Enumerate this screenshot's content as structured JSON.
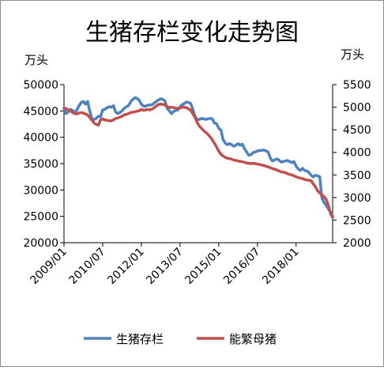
{
  "chart_data": {
    "type": "line",
    "title": "生猪存栏变化走势图",
    "ylabel_left": "万头",
    "ylabel_right": "万头",
    "ylim_left": [
      20000,
      50000
    ],
    "ylim_right": [
      2000,
      5500
    ],
    "yticks_left": [
      20000,
      25000,
      30000,
      35000,
      40000,
      45000,
      50000
    ],
    "yticks_right": [
      2000,
      2500,
      3000,
      3500,
      4000,
      4500,
      5000,
      5500
    ],
    "x_tick_labels": [
      "2009/01",
      "2010/07",
      "2012/01",
      "2013/07",
      "2015/01",
      "2016/07",
      "2018/01"
    ],
    "x_range": [
      "2009/01",
      "2019/06"
    ],
    "grid": false,
    "legend_position": "bottom",
    "series": [
      {
        "name": "生猪存栏",
        "axis": "left",
        "color": "#4f81bd",
        "x": [
          "2009/01",
          "2009/02",
          "2009/03",
          "2009/04",
          "2009/05",
          "2009/06",
          "2009/07",
          "2009/08",
          "2009/09",
          "2009/10",
          "2009/11",
          "2009/12",
          "2010/01",
          "2010/02",
          "2010/03",
          "2010/04",
          "2010/05",
          "2010/06",
          "2010/07",
          "2010/08",
          "2010/09",
          "2010/10",
          "2010/11",
          "2010/12",
          "2011/01",
          "2011/02",
          "2011/03",
          "2011/04",
          "2011/05",
          "2011/06",
          "2011/07",
          "2011/08",
          "2011/09",
          "2011/10",
          "2011/11",
          "2011/12",
          "2012/01",
          "2012/02",
          "2012/03",
          "2012/04",
          "2012/05",
          "2012/06",
          "2012/07",
          "2012/08",
          "2012/09",
          "2012/10",
          "2012/11",
          "2012/12",
          "2013/01",
          "2013/02",
          "2013/03",
          "2013/04",
          "2013/05",
          "2013/06",
          "2013/07",
          "2013/08",
          "2013/09",
          "2013/10",
          "2013/11",
          "2013/12",
          "2014/01",
          "2014/02",
          "2014/03",
          "2014/04",
          "2014/05",
          "2014/06",
          "2014/07",
          "2014/08",
          "2014/09",
          "2014/10",
          "2014/11",
          "2014/12",
          "2015/01",
          "2015/02",
          "2015/03",
          "2015/04",
          "2015/05",
          "2015/06",
          "2015/07",
          "2015/08",
          "2015/09",
          "2015/10",
          "2015/11",
          "2015/12",
          "2016/01",
          "2016/02",
          "2016/03",
          "2016/04",
          "2016/05",
          "2016/06",
          "2016/07",
          "2016/08",
          "2016/09",
          "2016/10",
          "2016/11",
          "2016/12",
          "2017/01",
          "2017/02",
          "2017/03",
          "2017/04",
          "2017/05",
          "2017/06",
          "2017/07",
          "2017/08",
          "2017/09",
          "2017/10",
          "2017/11",
          "2017/12",
          "2018/01",
          "2018/02",
          "2018/03",
          "2018/04",
          "2018/05",
          "2018/06",
          "2018/07",
          "2018/08",
          "2018/09",
          "2018/10",
          "2018/11",
          "2018/12",
          "2019/01",
          "2019/02",
          "2019/03",
          "2019/04",
          "2019/05",
          "2019/06"
        ],
        "values": [
          45500,
          44500,
          44800,
          45300,
          45100,
          44600,
          45200,
          46000,
          46600,
          46800,
          46300,
          46800,
          45000,
          43500,
          43400,
          43600,
          44000,
          43900,
          45200,
          45300,
          45600,
          45800,
          45700,
          46000,
          44800,
          44500,
          44700,
          45000,
          45500,
          45800,
          46000,
          46700,
          47200,
          47500,
          47400,
          47000,
          46300,
          45900,
          45900,
          46100,
          46100,
          46200,
          46500,
          46800,
          47100,
          47300,
          47200,
          46900,
          45500,
          45000,
          44500,
          44900,
          45100,
          45200,
          45800,
          46200,
          46400,
          46700,
          46600,
          46400,
          45200,
          44000,
          43300,
          43400,
          43600,
          43500,
          43400,
          43500,
          43600,
          43500,
          42700,
          42600,
          41700,
          41400,
          39600,
          38900,
          38600,
          38800,
          38600,
          38300,
          38500,
          38800,
          38500,
          38700,
          37800,
          37200,
          36600,
          36700,
          37100,
          37200,
          37400,
          37500,
          37500,
          37600,
          37400,
          37200,
          36100,
          35500,
          35700,
          35900,
          35700,
          35300,
          35400,
          35500,
          35600,
          35400,
          35200,
          35400,
          34500,
          34000,
          33700,
          34100,
          33700,
          33600,
          33300,
          32800,
          32500,
          32800,
          32700,
          32500,
          28500,
          27600,
          27100,
          26400,
          25800,
          25000
        ]
      },
      {
        "name": "能繁母猪",
        "axis": "right",
        "color": "#c0504d",
        "x": [
          "2009/01",
          "2009/02",
          "2009/03",
          "2009/04",
          "2009/05",
          "2009/06",
          "2009/07",
          "2009/08",
          "2009/09",
          "2009/10",
          "2009/11",
          "2009/12",
          "2010/01",
          "2010/02",
          "2010/03",
          "2010/04",
          "2010/05",
          "2010/06",
          "2010/07",
          "2010/08",
          "2010/09",
          "2010/10",
          "2010/11",
          "2010/12",
          "2011/01",
          "2011/02",
          "2011/03",
          "2011/04",
          "2011/05",
          "2011/06",
          "2011/07",
          "2011/08",
          "2011/09",
          "2011/10",
          "2011/11",
          "2011/12",
          "2012/01",
          "2012/02",
          "2012/03",
          "2012/04",
          "2012/05",
          "2012/06",
          "2012/07",
          "2012/08",
          "2012/09",
          "2012/10",
          "2012/11",
          "2012/12",
          "2013/01",
          "2013/02",
          "2013/03",
          "2013/04",
          "2013/05",
          "2013/06",
          "2013/07",
          "2013/08",
          "2013/09",
          "2013/10",
          "2013/11",
          "2013/12",
          "2014/01",
          "2014/02",
          "2014/03",
          "2014/04",
          "2014/05",
          "2014/06",
          "2014/07",
          "2014/08",
          "2014/09",
          "2014/10",
          "2014/11",
          "2014/12",
          "2015/01",
          "2015/02",
          "2015/03",
          "2015/04",
          "2015/05",
          "2015/06",
          "2015/07",
          "2015/08",
          "2015/09",
          "2015/10",
          "2015/11",
          "2015/12",
          "2016/01",
          "2016/02",
          "2016/03",
          "2016/04",
          "2016/05",
          "2016/06",
          "2016/07",
          "2016/08",
          "2016/09",
          "2016/10",
          "2016/11",
          "2016/12",
          "2017/01",
          "2017/02",
          "2017/03",
          "2017/04",
          "2017/05",
          "2017/06",
          "2017/07",
          "2017/08",
          "2017/09",
          "2017/10",
          "2017/11",
          "2017/12",
          "2018/01",
          "2018/02",
          "2018/03",
          "2018/04",
          "2018/05",
          "2018/06",
          "2018/07",
          "2018/08",
          "2018/09",
          "2018/10",
          "2018/11",
          "2018/12",
          "2019/01",
          "2019/02",
          "2019/03",
          "2019/04",
          "2019/05",
          "2019/06"
        ],
        "values": [
          4980,
          4970,
          4940,
          4920,
          4880,
          4860,
          4850,
          4870,
          4880,
          4870,
          4850,
          4830,
          4770,
          4710,
          4650,
          4620,
          4600,
          4720,
          4740,
          4720,
          4710,
          4700,
          4700,
          4720,
          4750,
          4760,
          4780,
          4800,
          4830,
          4840,
          4860,
          4880,
          4890,
          4900,
          4910,
          4920,
          4950,
          4930,
          4940,
          4950,
          4940,
          4960,
          4990,
          5030,
          5060,
          5070,
          5060,
          5050,
          5010,
          4990,
          5000,
          4990,
          4980,
          4970,
          4980,
          5000,
          5000,
          4990,
          4960,
          4930,
          4850,
          4770,
          4660,
          4580,
          4530,
          4480,
          4440,
          4400,
          4340,
          4280,
          4200,
          4120,
          4030,
          3960,
          3920,
          3890,
          3870,
          3860,
          3850,
          3830,
          3820,
          3810,
          3800,
          3790,
          3780,
          3760,
          3760,
          3750,
          3760,
          3750,
          3740,
          3730,
          3720,
          3710,
          3690,
          3680,
          3660,
          3640,
          3630,
          3610,
          3590,
          3570,
          3560,
          3550,
          3530,
          3510,
          3500,
          3480,
          3460,
          3440,
          3430,
          3420,
          3400,
          3390,
          3380,
          3370,
          3300,
          3240,
          3150,
          3100,
          3060,
          3020,
          2960,
          2830,
          2650,
          2560
        ]
      }
    ]
  }
}
